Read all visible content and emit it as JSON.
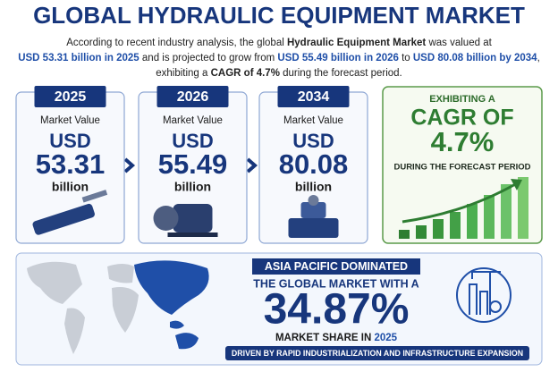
{
  "header": {
    "title": "GLOBAL HYDRAULIC EQUIPMENT MARKET",
    "intro": [
      "According to recent industry analysis, the global ",
      "Hydraulic Equipment Market",
      " was valued at",
      "USD 53.31 billion in 2025",
      " and is projected to grow from ",
      "USD 55.49 billion in 2026",
      " to ",
      "USD 80.08 billion by 2034",
      ",",
      "exhibiting a ",
      "CAGR of 4.7%",
      " during the forecast period."
    ]
  },
  "cards": [
    {
      "year": "2025",
      "label": "Market Value",
      "currency": "USD",
      "value": "53.31",
      "unit": "billion"
    },
    {
      "year": "2026",
      "label": "Market Value",
      "currency": "USD",
      "value": "55.49",
      "unit": "billion"
    },
    {
      "year": "2034",
      "label": "Market Value",
      "currency": "USD",
      "value": "80.08",
      "unit": "billion"
    }
  ],
  "cagr": {
    "kicker": "EXHIBITING A",
    "heading": "CAGR OF",
    "value": "4.7%",
    "caption": "DURING THE FORECAST PERIOD"
  },
  "region": {
    "badge": "ASIA PACIFIC DOMINATED",
    "line": "THE GLOBAL MARKET WITH A",
    "value": "34.87%",
    "caption": [
      "MARKET SHARE IN ",
      "2025"
    ],
    "footer": "DRIVEN BY RAPID INDUSTRIALIZATION AND INFRASTRUCTURE EXPANSION"
  }
}
